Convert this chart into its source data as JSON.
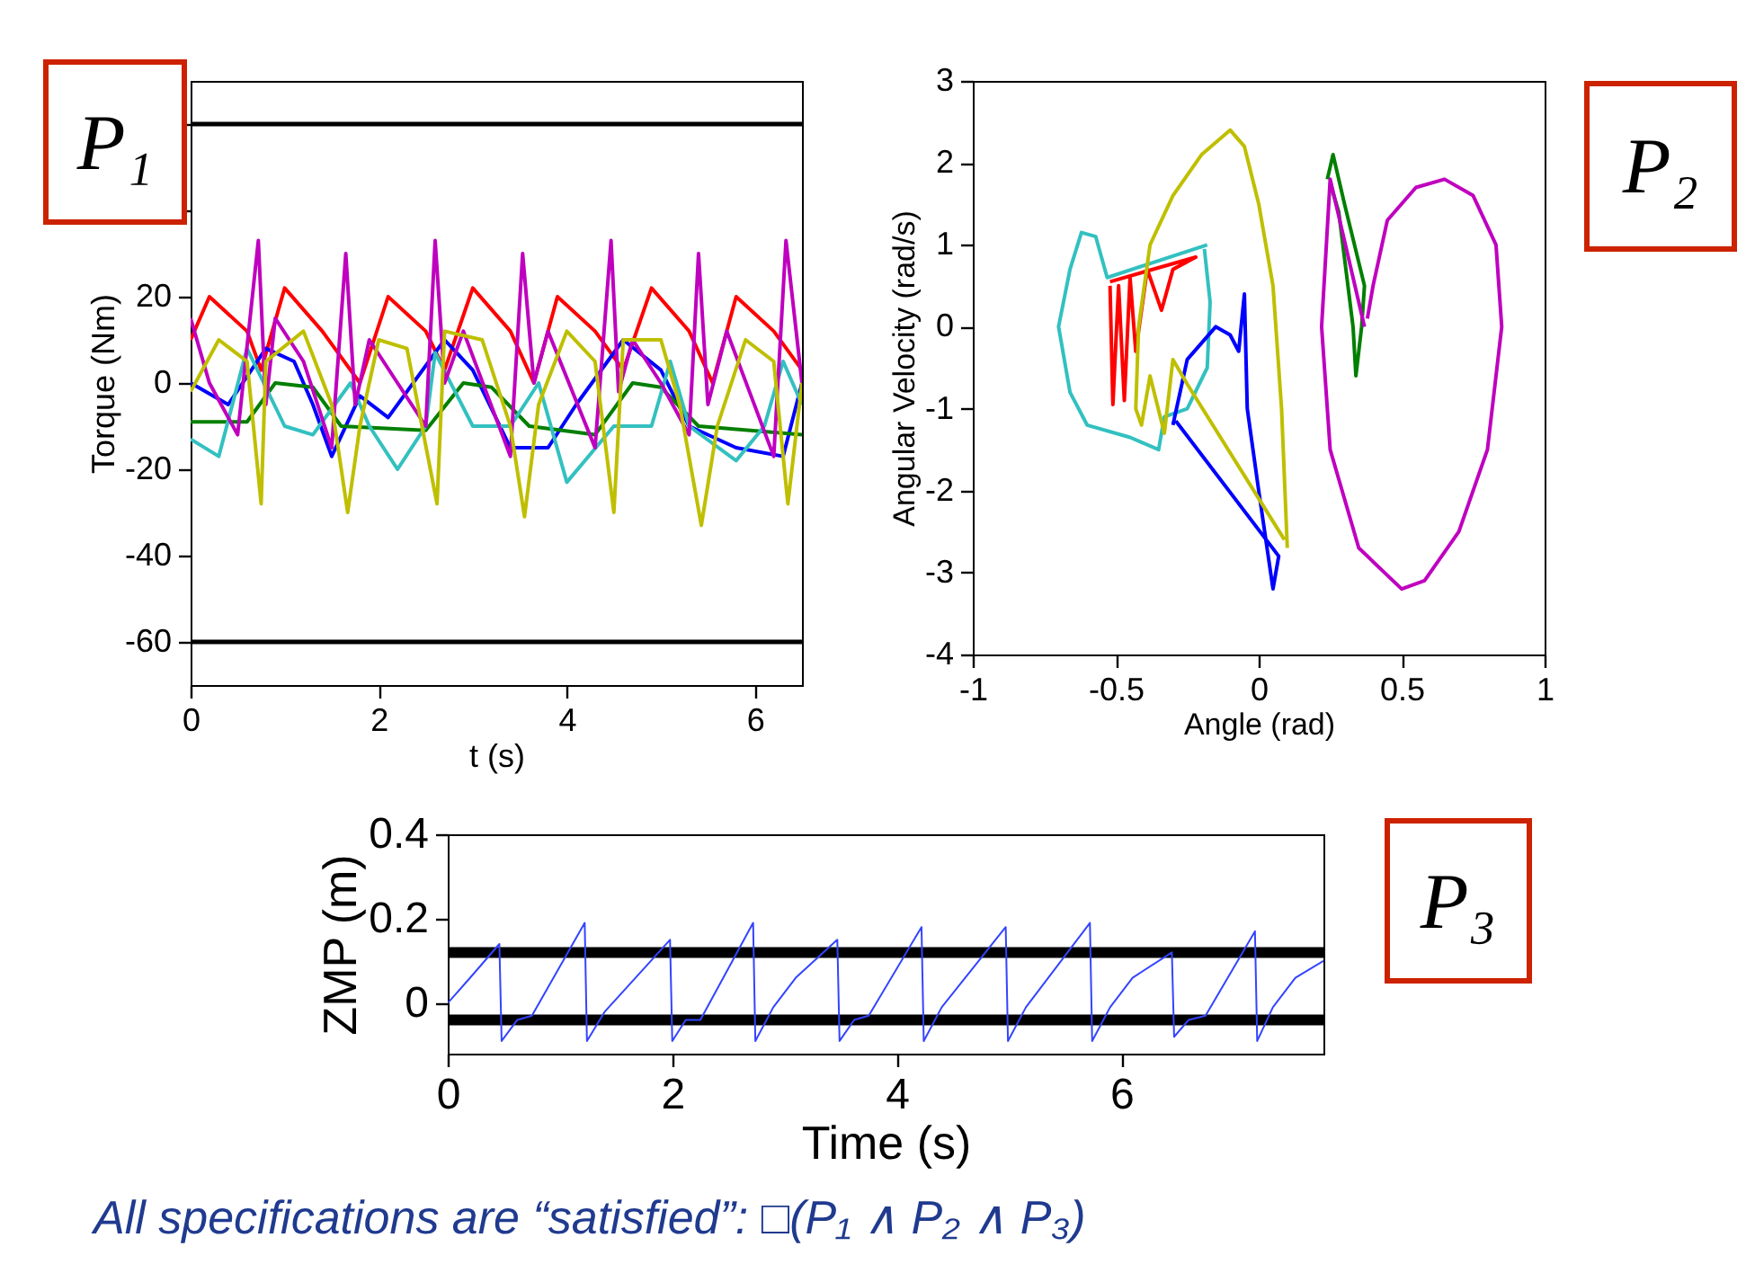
{
  "chart_data": [
    {
      "type": "line",
      "xlabel": "t (s)",
      "ylabel": "Torque (Nm)",
      "xlim": [
        0,
        6.5
      ],
      "ylim": [
        -70,
        70
      ],
      "xticks": [
        0,
        2,
        4,
        6
      ],
      "yticks": [
        {
          "value": 60,
          "label": null
        },
        {
          "value": 40,
          "label": null
        },
        20,
        0,
        -20,
        -40,
        -60
      ],
      "grid": false,
      "legend": false,
      "annotations": [
        "P₁"
      ],
      "ref_lines": [
        {
          "axis": "y",
          "value": 60,
          "color": "#000000"
        },
        {
          "axis": "y",
          "value": -60,
          "color": "#000000"
        }
      ],
      "series": [
        {
          "color": "#ff0000",
          "x": [
            0,
            0.2,
            0.6,
            0.75,
            1.0,
            1.4,
            1.8,
            2.1,
            2.5,
            2.7,
            3.0,
            3.4,
            3.65,
            3.9,
            4.3,
            4.6,
            4.9,
            5.3,
            5.55,
            5.8,
            6.2,
            6.5
          ],
          "values": [
            10,
            20,
            12,
            3,
            22,
            12,
            0,
            20,
            12,
            3,
            22,
            12,
            0,
            20,
            12,
            3,
            22,
            12,
            0,
            20,
            12,
            3
          ]
        },
        {
          "color": "#0000ff",
          "x": [
            0,
            0.4,
            0.8,
            1.1,
            1.3,
            1.5,
            1.8,
            2.1,
            2.7,
            3.0,
            3.4,
            3.8,
            4.1,
            4.6,
            5.0,
            5.3,
            5.8,
            6.3,
            6.5
          ],
          "values": [
            0,
            -5,
            8,
            5,
            -5,
            -17,
            -3,
            -8,
            10,
            3,
            -15,
            -15,
            -5,
            10,
            3,
            -10,
            -15,
            -17,
            0
          ]
        },
        {
          "color": "#007f00",
          "x": [
            0,
            0.6,
            0.9,
            1.3,
            1.6,
            2.5,
            2.9,
            3.2,
            3.6,
            4.3,
            4.7,
            5.0,
            5.4,
            6.5
          ],
          "values": [
            -9,
            -9,
            0,
            -1,
            -10,
            -11,
            0,
            -1,
            -10,
            -12,
            0,
            -1,
            -10,
            -12
          ]
        },
        {
          "color": "#33c0c0",
          "x": [
            0,
            0.3,
            0.6,
            1.0,
            1.3,
            1.7,
            1.9,
            2.2,
            2.5,
            2.6,
            3.0,
            3.4,
            3.7,
            4.0,
            4.5,
            4.9,
            5.1,
            5.3,
            5.8,
            6.1,
            6.3,
            6.5
          ],
          "values": [
            -13,
            -17,
            8,
            -10,
            -12,
            0,
            -10,
            -20,
            -10,
            7,
            -10,
            -10,
            0,
            -23,
            -10,
            -10,
            5,
            -10,
            -18,
            -10,
            5,
            -5
          ]
        },
        {
          "color": "#bf00bf",
          "x": [
            0,
            0.2,
            0.5,
            0.72,
            0.8,
            0.9,
            1.2,
            1.5,
            1.65,
            1.75,
            1.9,
            2.2,
            2.5,
            2.6,
            2.7,
            2.9,
            3.4,
            3.53,
            3.65,
            3.8,
            4.3,
            4.47,
            4.55,
            4.7,
            5.0,
            5.3,
            5.4,
            5.5,
            5.7,
            6.2,
            6.33,
            6.5
          ],
          "values": [
            15,
            0,
            -12,
            33,
            -5,
            15,
            5,
            -15,
            30,
            -5,
            10,
            0,
            -10,
            33,
            0,
            12,
            -17,
            30,
            0,
            12,
            -15,
            33,
            -2,
            10,
            0,
            -12,
            30,
            -5,
            12,
            -17,
            33,
            0
          ]
        },
        {
          "color": "#bfbf00",
          "x": [
            0,
            0.3,
            0.6,
            0.75,
            0.8,
            1.2,
            1.5,
            1.67,
            1.8,
            2.0,
            2.3,
            2.62,
            2.7,
            3.1,
            3.4,
            3.55,
            3.7,
            4.0,
            4.3,
            4.5,
            4.6,
            5.0,
            5.2,
            5.43,
            5.6,
            5.9,
            6.2,
            6.35,
            6.5
          ],
          "values": [
            -2,
            10,
            5,
            -28,
            5,
            12,
            -5,
            -30,
            -10,
            10,
            8,
            -28,
            12,
            10,
            -10,
            -31,
            -5,
            12,
            5,
            -30,
            10,
            10,
            -5,
            -33,
            -10,
            10,
            5,
            -28,
            0
          ]
        }
      ]
    },
    {
      "type": "line",
      "xlabel": "Angle (rad)",
      "ylabel": "Angular Velocity (rad/s)",
      "xlim": [
        -1,
        1
      ],
      "ylim": [
        -4,
        3
      ],
      "xticks": [
        -1,
        -0.5,
        0,
        0.5,
        1
      ],
      "yticks": [
        -4,
        -3,
        -2,
        -1,
        0,
        1,
        2,
        3
      ],
      "grid": false,
      "legend": false,
      "annotations": [
        "P₂"
      ],
      "series": [
        {
          "color": "#33c0c0",
          "x": [
            -0.18,
            -0.53,
            -0.57,
            -0.62,
            -0.66,
            -0.7,
            -0.66,
            -0.6,
            -0.45,
            -0.35,
            -0.33,
            -0.25,
            -0.18,
            -0.17,
            -0.19
          ],
          "values": [
            1.0,
            0.6,
            1.1,
            1.15,
            0.7,
            0,
            -0.8,
            -1.2,
            -1.35,
            -1.5,
            -1.1,
            -1.0,
            -0.5,
            0.3,
            0.95
          ]
        },
        {
          "color": "#ff0000",
          "x": [
            -0.52,
            -0.51,
            -0.49,
            -0.47,
            -0.45,
            -0.43,
            -0.39,
            -0.34,
            -0.3,
            -0.22,
            -0.52
          ],
          "values": [
            0.5,
            -0.95,
            0.5,
            -0.9,
            0.6,
            -0.3,
            0.7,
            0.2,
            0.7,
            0.85,
            0.55
          ]
        },
        {
          "color": "#0000ff",
          "x": [
            -0.3,
            -0.25,
            -0.2,
            -0.15,
            -0.1,
            -0.07,
            -0.05,
            -0.04,
            0.0,
            0.05,
            0.07,
            -0.29
          ],
          "values": [
            -1.2,
            -0.4,
            -0.2,
            0.0,
            -0.1,
            -0.3,
            0.4,
            -1.0,
            -2.0,
            -3.2,
            -2.8,
            -1.15
          ]
        },
        {
          "color": "#bfbf00",
          "x": [
            0.1,
            0.08,
            0.05,
            0.0,
            -0.05,
            -0.1,
            -0.2,
            -0.3,
            -0.38,
            -0.42,
            -0.43,
            -0.41,
            -0.38,
            -0.33,
            -0.3,
            -0.25,
            0.09
          ],
          "values": [
            -2.7,
            -1,
            0.5,
            1.5,
            2.2,
            2.4,
            2.1,
            1.6,
            1.0,
            0.0,
            -1.0,
            -1.2,
            -0.6,
            -1.3,
            -0.4,
            -0.7,
            -2.6
          ]
        },
        {
          "color": "#007f00",
          "x": [
            0.24,
            0.26,
            0.3,
            0.37,
            0.36,
            0.34,
            0.33,
            0.28,
            0.25
          ],
          "values": [
            1.8,
            2.1,
            1.5,
            0.5,
            0.0,
            -0.6,
            0.0,
            1.4,
            1.75
          ]
        },
        {
          "color": "#bf00bf",
          "x": [
            0.37,
            0.25,
            0.22,
            0.25,
            0.35,
            0.5,
            0.58,
            0.7,
            0.8,
            0.85,
            0.83,
            0.75,
            0.65,
            0.55,
            0.45,
            0.4,
            0.38
          ],
          "values": [
            0.0,
            1.8,
            0,
            -1.5,
            -2.7,
            -3.2,
            -3.1,
            -2.5,
            -1.5,
            0,
            1,
            1.6,
            1.8,
            1.7,
            1.3,
            0.5,
            0.1
          ]
        }
      ]
    },
    {
      "type": "line",
      "xlabel": "Time (s)",
      "ylabel": "ZMP (m)",
      "xlim": [
        0,
        7.8
      ],
      "ylim": [
        -0.12,
        0.4
      ],
      "xticks": [
        0,
        2,
        4,
        6
      ],
      "yticks": [
        0,
        0.2,
        0.4
      ],
      "grid": false,
      "legend": false,
      "annotations": [
        "P₃",
        "All specifications are “satisfied”: □(P₁ ∧ P₂ ∧ P₃)"
      ],
      "ref_lines": [
        {
          "axis": "y",
          "value": 0.12,
          "color": "#000000"
        },
        {
          "axis": "y",
          "value": -0.04,
          "color": "#000000"
        }
      ],
      "series": [
        {
          "color": "#3344ff",
          "x": [
            0,
            0.2,
            0.46,
            0.48,
            0.62,
            0.75,
            1.22,
            1.24,
            1.4,
            1.98,
            2.0,
            2.12,
            2.25,
            2.72,
            2.74,
            2.9,
            3.1,
            3.47,
            3.49,
            3.62,
            3.75,
            4.22,
            4.24,
            4.4,
            4.97,
            4.99,
            5.15,
            5.72,
            5.74,
            5.9,
            6.1,
            6.45,
            6.47,
            6.6,
            6.75,
            7.19,
            7.21,
            7.35,
            7.55,
            7.8
          ],
          "values": [
            0,
            0.06,
            0.14,
            -0.09,
            -0.04,
            -0.03,
            0.19,
            -0.09,
            -0.02,
            0.15,
            -0.09,
            -0.04,
            -0.04,
            0.19,
            -0.09,
            -0.01,
            0.06,
            0.15,
            -0.09,
            -0.04,
            -0.03,
            0.18,
            -0.09,
            -0.01,
            0.18,
            -0.09,
            -0.01,
            0.19,
            -0.09,
            -0.01,
            0.06,
            0.12,
            -0.08,
            -0.04,
            -0.03,
            0.17,
            -0.09,
            -0.01,
            0.06,
            0.1
          ]
        }
      ]
    }
  ]
}
